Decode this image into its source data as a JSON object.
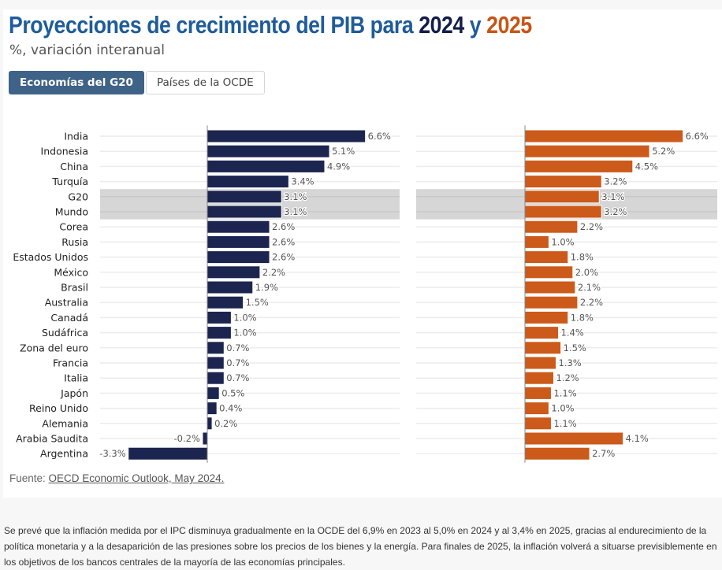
{
  "title": {
    "prefix": "Proyecciones de crecimiento del PIB para ",
    "year1": "2024",
    "joiner": " y ",
    "year2": "2025"
  },
  "subtitle": "%, variación interanual",
  "tabs": [
    {
      "label": "Economías del G20",
      "active": true
    },
    {
      "label": "Países de la OCDE",
      "active": false
    }
  ],
  "colors": {
    "title": "#1f5c99",
    "series_2024": "#1c2550",
    "series_2025": "#cc5a1a",
    "highlight_band": "#d6d6d6",
    "tab_active": "#3f6287"
  },
  "chart_data": {
    "type": "bar",
    "orientation": "horizontal",
    "title": "Proyecciones de crecimiento del PIB para 2024 y 2025",
    "subtitle": "%, variación interanual",
    "xlabel": "",
    "ylabel": "",
    "unit": "%",
    "grid": true,
    "layout": "two side-by-side panels sharing category labels",
    "highlighted_categories": [
      "G20",
      "Mundo"
    ],
    "categories": [
      "India",
      "Indonesia",
      "China",
      "Turquía",
      "G20",
      "Mundo",
      "Corea",
      "Rusia",
      "Estados Unidos",
      "México",
      "Brasil",
      "Australia",
      "Canadá",
      "Sudáfrica",
      "Zona del euro",
      "Francia",
      "Italia",
      "Japón",
      "Reino Unido",
      "Alemania",
      "Arabia Saudita",
      "Argentina"
    ],
    "series": [
      {
        "name": "2024",
        "color": "#1c2550",
        "values": [
          6.6,
          5.1,
          4.9,
          3.4,
          3.1,
          3.1,
          2.6,
          2.6,
          2.6,
          2.2,
          1.9,
          1.5,
          1.0,
          1.0,
          0.7,
          0.7,
          0.7,
          0.5,
          0.4,
          0.2,
          -0.2,
          -3.3
        ],
        "labels": [
          "6.6%",
          "5.1%",
          "4.9%",
          "3.4%",
          "3.1%",
          "3.1%",
          "2.6%",
          "2.6%",
          "2.6%",
          "2.2%",
          "1.9%",
          "1.5%",
          "1.0%",
          "1.0%",
          "0.7%",
          "0.7%",
          "0.7%",
          "0.5%",
          "0.4%",
          "0.2%",
          "-0.2%",
          "-3.3%"
        ]
      },
      {
        "name": "2025",
        "color": "#cc5a1a",
        "values": [
          6.6,
          5.2,
          4.5,
          3.2,
          3.1,
          3.2,
          2.2,
          1.0,
          1.8,
          2.0,
          2.1,
          2.2,
          1.8,
          1.4,
          1.5,
          1.3,
          1.2,
          1.1,
          1.0,
          1.1,
          4.1,
          2.7
        ],
        "labels": [
          "6.6%",
          "5.2%",
          "4.5%",
          "3.2%",
          "3.1%",
          "3.2%",
          "2.2%",
          "1.0%",
          "1.8%",
          "2.0%",
          "2.1%",
          "2.2%",
          "1.8%",
          "1.4%",
          "1.5%",
          "1.3%",
          "1.2%",
          "1.1%",
          "1.0%",
          "1.1%",
          "4.1%",
          "2.7%"
        ]
      }
    ]
  },
  "source": {
    "prefix": "Fuente: ",
    "link": "OECD Economic Outlook, May 2024."
  },
  "note": "Se prevé que la inflación medida por el IPC disminuya gradualmente en la OCDE del 6,9% en 2023 al 5,0% en 2024 y al 3,4% en 2025, gracias al endurecimiento de la política monetaria y a la desaparición de las presiones sobre los precios de los bienes y la energía. Para finales de 2025, la inflación volverá a situarse previsiblemente en los objetivos de los bancos centrales de la mayoría de las economías principales."
}
